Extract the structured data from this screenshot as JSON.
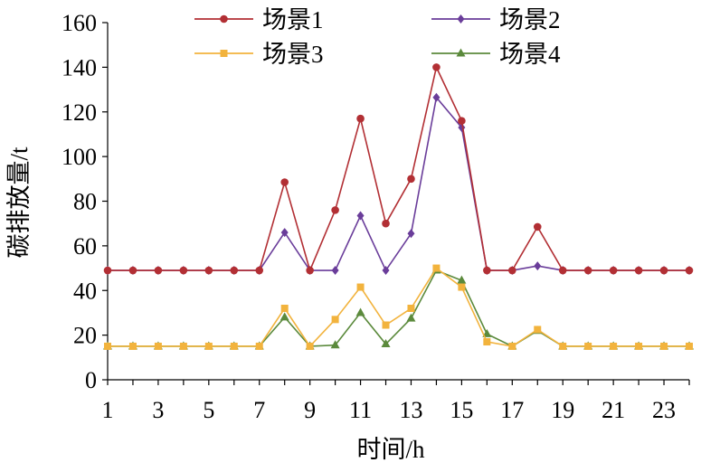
{
  "chart_data": {
    "type": "line",
    "title": "",
    "xlabel": "时间/h",
    "ylabel": "碳排放量/t",
    "x": [
      1,
      2,
      3,
      4,
      5,
      6,
      7,
      8,
      9,
      10,
      11,
      12,
      13,
      14,
      15,
      16,
      17,
      18,
      19,
      20,
      21,
      22,
      23,
      24
    ],
    "xticks": [
      1,
      3,
      5,
      7,
      9,
      11,
      13,
      15,
      17,
      19,
      21,
      23
    ],
    "xticklabels": [
      "1",
      "3",
      "5",
      "7",
      "9",
      "11",
      "13",
      "15",
      "17",
      "19",
      "21",
      "23"
    ],
    "xlim": [
      1,
      24
    ],
    "ylim": [
      0,
      160
    ],
    "yticks": [
      0,
      20,
      40,
      60,
      80,
      100,
      120,
      140,
      160
    ],
    "yticklabels": [
      "0",
      "20",
      "40",
      "60",
      "80",
      "100",
      "120",
      "140",
      "160"
    ],
    "grid": false,
    "legend_position": "top",
    "series": [
      {
        "name": "场景1",
        "color": "#b22f34",
        "marker": "circle",
        "values": [
          49,
          49,
          49,
          49,
          49,
          49,
          49,
          88.5,
          49,
          76,
          117,
          70,
          90,
          140,
          116,
          49,
          49,
          68.5,
          49,
          49,
          49,
          49,
          49,
          49
        ]
      },
      {
        "name": "场景2",
        "color": "#6a3d9a",
        "marker": "diamond",
        "values": [
          49,
          49,
          49,
          49,
          49,
          49,
          49,
          66,
          49,
          49,
          73.5,
          49,
          65.5,
          126.5,
          113,
          49,
          49,
          51,
          49,
          49,
          49,
          49,
          49,
          49
        ]
      },
      {
        "name": "场景3",
        "color": "#f2b33d",
        "marker": "square",
        "values": [
          15,
          15,
          15,
          15,
          15,
          15,
          15,
          32,
          15,
          27,
          41.5,
          24.5,
          32,
          50,
          41.5,
          17,
          15,
          22.5,
          15,
          15,
          15,
          15,
          15,
          15
        ]
      },
      {
        "name": "场景4",
        "color": "#5b8a3c",
        "marker": "triangle",
        "values": [
          15,
          15,
          15,
          15,
          15,
          15,
          15,
          28,
          15,
          15.5,
          30,
          16,
          27.5,
          49,
          44.5,
          20.5,
          15,
          22,
          15,
          15,
          15,
          15,
          15,
          15
        ]
      }
    ]
  }
}
